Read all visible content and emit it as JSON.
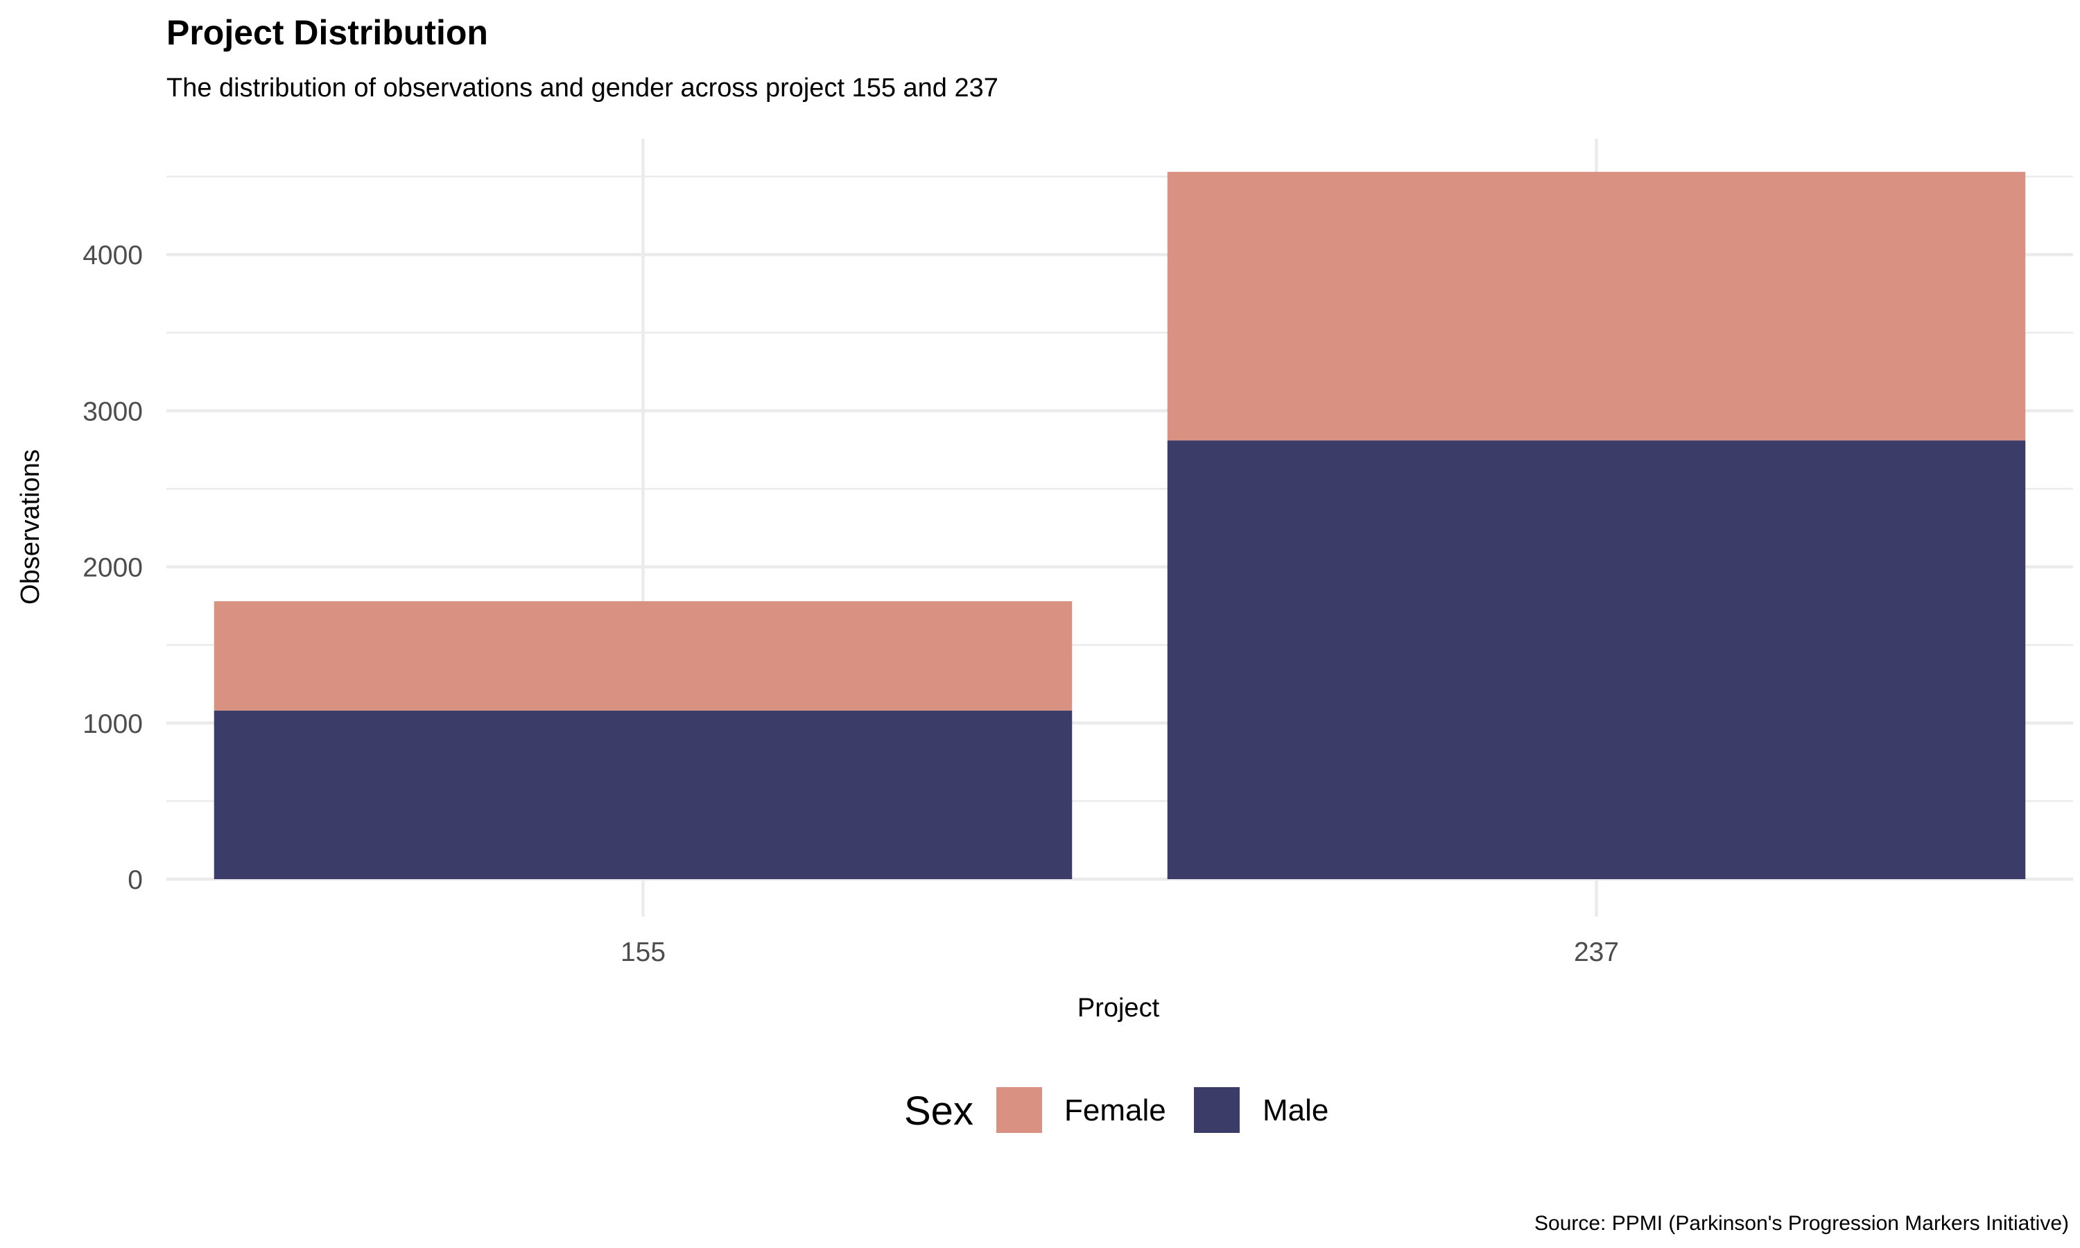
{
  "chart_data": {
    "type": "bar",
    "stacked": true,
    "title": "Project Distribution",
    "subtitle": "The distribution of observations and gender across project 155 and 237",
    "xlabel": "Project",
    "ylabel": "Observations",
    "caption": "Source: PPMI (Parkinson's Progression Markers Initiative)",
    "categories": [
      "155",
      "237"
    ],
    "series": [
      {
        "name": "Male",
        "values": [
          1080,
          2810
        ],
        "color": "#3c3c69"
      },
      {
        "name": "Female",
        "values": [
          700,
          1720
        ],
        "color": "#d99282"
      }
    ],
    "ylim": [
      0,
      4520
    ],
    "yticks": [
      0,
      1000,
      2000,
      3000,
      4000
    ],
    "yticks_minor": [
      500,
      1500,
      2500,
      3500,
      4500
    ],
    "grid": true,
    "legend": {
      "title": "Sex",
      "position": "bottom",
      "order": [
        "Female",
        "Male"
      ]
    }
  }
}
